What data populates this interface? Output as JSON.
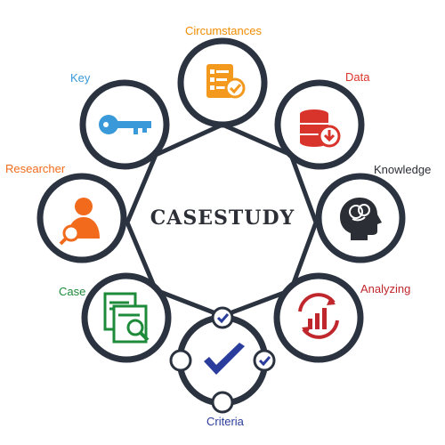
{
  "center_title": "CASESTUDY",
  "nodes": [
    {
      "id": "circumstances",
      "label": "Circumstances",
      "icon": "checklist-icon",
      "color": "#f08c00"
    },
    {
      "id": "data",
      "label": "Data",
      "icon": "database-download-icon",
      "color": "#d9342b"
    },
    {
      "id": "knowledge",
      "label": "Knowledge",
      "icon": "brain-head-icon",
      "color": "#2b2e34"
    },
    {
      "id": "analyzing",
      "label": "Analyzing",
      "icon": "chart-cycle-icon",
      "color": "#c0272d"
    },
    {
      "id": "criteria",
      "label": "Criteria",
      "icon": "checkmark-icon",
      "color": "#2a3d9c"
    },
    {
      "id": "case",
      "label": "Case",
      "icon": "document-search-icon",
      "color": "#1e8b3a"
    },
    {
      "id": "researcher",
      "label": "Researcher",
      "icon": "user-search-icon",
      "color": "#f26b1d"
    },
    {
      "id": "key",
      "label": "Key",
      "icon": "key-icon",
      "color": "#3a9ad9"
    }
  ],
  "colors": {
    "ring": "#2c3340",
    "accent_check": "#2a3d9c"
  }
}
